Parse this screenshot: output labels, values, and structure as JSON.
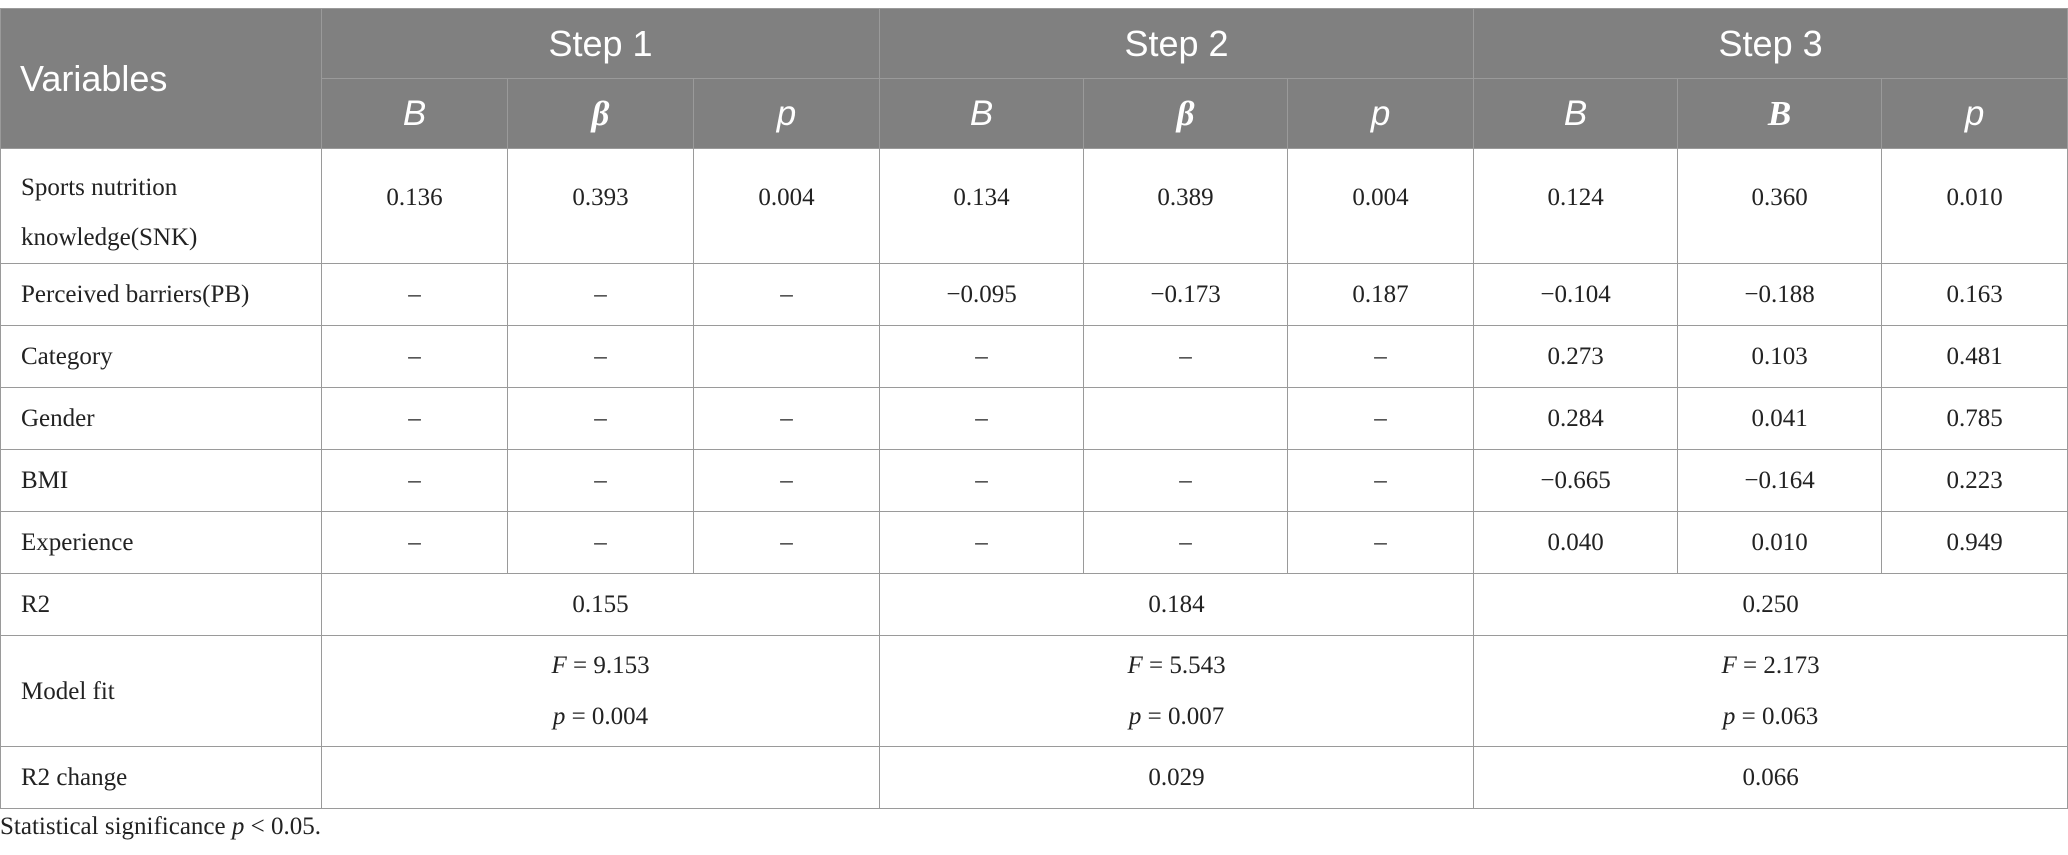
{
  "header": {
    "variables": "Variables",
    "steps": [
      "Step 1",
      "Step 2",
      "Step 3"
    ],
    "sub": [
      "B",
      "β",
      "p",
      "B",
      "β",
      "p",
      "B",
      "Β",
      "p"
    ]
  },
  "rows": [
    {
      "label": "Sports nutrition knowledge(SNK)",
      "cells": [
        "0.136",
        "0.393",
        "0.004",
        "0.134",
        "0.389",
        "0.004",
        "0.124",
        "0.360",
        "0.010"
      ]
    },
    {
      "label": "Perceived barriers(PB)",
      "cells": [
        "–",
        "–",
        "–",
        "−0.095",
        "−0.173",
        "0.187",
        "−0.104",
        "−0.188",
        "0.163"
      ]
    },
    {
      "label": "Category",
      "cells": [
        "–",
        "–",
        "",
        "–",
        "–",
        "–",
        "0.273",
        "0.103",
        "0.481"
      ]
    },
    {
      "label": "Gender",
      "cells": [
        "–",
        "–",
        "–",
        "–",
        "",
        "–",
        "0.284",
        "0.041",
        "0.785"
      ]
    },
    {
      "label": "BMI",
      "cells": [
        "–",
        "–",
        "–",
        "–",
        "–",
        "–",
        "−0.665",
        "−0.164",
        "0.223"
      ]
    },
    {
      "label": "Experience",
      "cells": [
        "–",
        "–",
        "–",
        "–",
        "–",
        "–",
        "0.040",
        "0.010",
        "0.949"
      ]
    }
  ],
  "r2": {
    "label": "R2",
    "values": [
      "0.155",
      "0.184",
      "0.250"
    ]
  },
  "model_fit": {
    "label": "Model fit",
    "f_symbol": "F",
    "p_symbol": "p",
    "f_values": [
      "= 9.153",
      "= 5.543",
      "= 2.173"
    ],
    "p_values": [
      "= 0.004",
      "= 0.007",
      "= 0.063"
    ]
  },
  "r2_change": {
    "label": "R2 change",
    "values": [
      "",
      "0.029",
      "0.066"
    ]
  },
  "note": {
    "prefix": "Statistical significance ",
    "symbol": "p",
    "suffix": " < 0.05."
  }
}
